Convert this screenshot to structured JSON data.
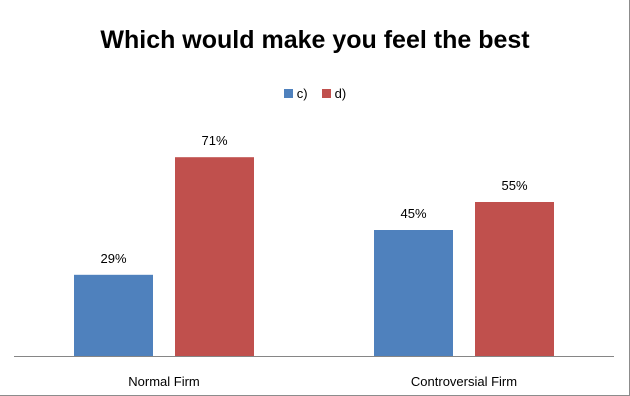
{
  "chart_data": {
    "type": "bar",
    "title": "Which would make you feel the best",
    "categories": [
      "Normal Firm",
      "Controversial Firm"
    ],
    "series": [
      {
        "name": "c)",
        "color": "#4f81bd",
        "values": [
          29,
          45
        ],
        "labels": [
          "29%",
          "45%"
        ]
      },
      {
        "name": "d)",
        "color": "#c0504d",
        "values": [
          71,
          55
        ],
        "labels": [
          "71%",
          "55%"
        ]
      }
    ],
    "ylim": [
      0,
      80
    ],
    "grid": false,
    "legend": "top-center"
  }
}
